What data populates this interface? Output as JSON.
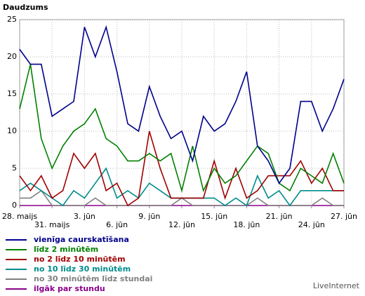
{
  "chart_data": {
    "type": "line",
    "title": "Daudzums",
    "footer": "LiveInternet",
    "categories": [
      "28. maijs",
      null,
      null,
      "31. maijs",
      null,
      null,
      "3. jūn",
      null,
      null,
      "6. jūn",
      null,
      null,
      "9. jūn",
      null,
      null,
      "12. jūn",
      null,
      null,
      "15. jūn",
      null,
      null,
      "18. jūn",
      null,
      null,
      "21. jūn",
      null,
      null,
      "24. jūn",
      null,
      null,
      "27. jūn"
    ],
    "ylim": [
      0,
      25
    ],
    "yticks": [
      0,
      5,
      10,
      15,
      20,
      25
    ],
    "grid": true,
    "series": [
      {
        "name": "vienīga caurskatīšana",
        "color": "#00008b",
        "values": [
          21,
          19,
          19,
          12,
          13,
          14,
          24,
          20,
          24,
          18,
          11,
          10,
          16,
          12,
          9,
          10,
          6,
          12,
          10,
          11,
          14,
          18,
          8,
          6,
          3,
          5,
          14,
          14,
          10,
          13,
          17
        ]
      },
      {
        "name": "līdz 2 minūtēm",
        "color": "#008000",
        "values": [
          13,
          19,
          9,
          5,
          8,
          10,
          11,
          13,
          9,
          8,
          6,
          6,
          7,
          6,
          7,
          2,
          8,
          2,
          5,
          3,
          4,
          6,
          8,
          7,
          3,
          2,
          5,
          4,
          3,
          7,
          3
        ]
      },
      {
        "name": "no 2 līdz 10 minūtēm",
        "color": "#a00000",
        "values": [
          4,
          2,
          4,
          1,
          2,
          7,
          5,
          7,
          2,
          3,
          0,
          1,
          10,
          5,
          1,
          1,
          1,
          1,
          6,
          1,
          5,
          1,
          2,
          4,
          4,
          4,
          6,
          3,
          5,
          2,
          2
        ]
      },
      {
        "name": "no 10 līdz 30 minūtēm",
        "color": "#008b8b",
        "values": [
          2,
          3,
          2,
          1,
          0,
          2,
          1,
          3,
          5,
          1,
          2,
          1,
          3,
          2,
          1,
          1,
          1,
          1,
          1,
          0,
          1,
          0,
          4,
          1,
          2,
          0,
          2,
          2,
          2,
          2,
          2
        ]
      },
      {
        "name": "no 30 minūtēm līdz stundai",
        "color": "#808080",
        "values": [
          1,
          1,
          2,
          0,
          0,
          0,
          0,
          1,
          0,
          0,
          0,
          0,
          0,
          0,
          0,
          1,
          0,
          0,
          0,
          0,
          0,
          0,
          1,
          0,
          0,
          0,
          0,
          0,
          1,
          0,
          0
        ]
      },
      {
        "name": "ilgāk par stundu",
        "color": "#8b008b",
        "values": [
          0,
          0,
          0,
          0,
          0,
          0,
          0,
          0,
          0,
          0,
          0,
          0,
          0,
          0,
          0,
          0,
          0,
          0,
          0,
          0,
          0,
          0,
          0,
          0,
          0,
          0,
          0,
          0,
          0,
          0,
          0
        ]
      }
    ]
  }
}
